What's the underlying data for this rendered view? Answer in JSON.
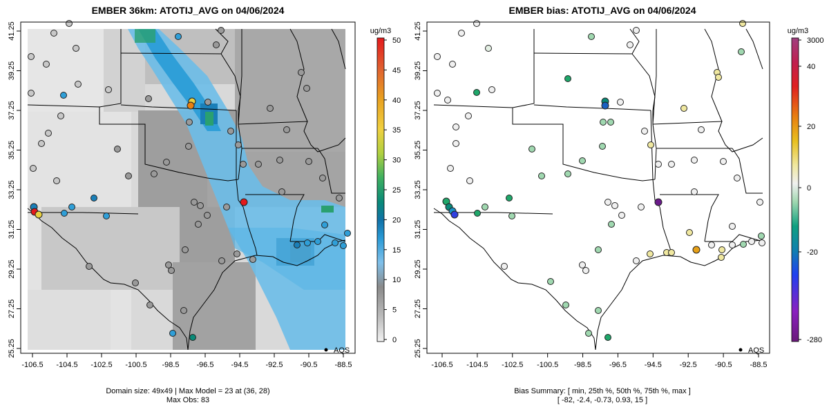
{
  "panels": [
    {
      "title": "EMBER 36km: ATOTIJ_AVG on 04/06/2024",
      "unit_label": "ug/m3",
      "x_ticks": [
        "-106.5",
        "-104.5",
        "-102.5",
        "-100.5",
        "-98.5",
        "-96.5",
        "-94.5",
        "-92.5",
        "-90.5",
        "-88.5"
      ],
      "y_ticks": [
        "25.25",
        "27.25",
        "29.25",
        "31.25",
        "33.25",
        "35.25",
        "37.25",
        "39.25",
        "41.25"
      ],
      "colorbar_ticks": [
        "0",
        "5",
        "10",
        "15",
        "20",
        "25",
        "30",
        "35",
        "40",
        "45",
        "50"
      ],
      "legend_label": "AQS",
      "caption_line1": "Domain size: 49x49 | Max Model = 23 at (36, 28)",
      "caption_line2": "Max Obs: 83"
    },
    {
      "title": "EMBER bias: ATOTIJ_AVG on 04/06/2024",
      "unit_label": "ug/m3",
      "x_ticks": [
        "-106.5",
        "-104.5",
        "-102.5",
        "-100.5",
        "-98.5",
        "-96.5",
        "-94.5",
        "-92.5",
        "-90.5",
        "-88.5"
      ],
      "y_ticks": [
        "25.25",
        "27.25",
        "29.25",
        "31.25",
        "33.25",
        "35.25",
        "37.25",
        "39.25",
        "41.25"
      ],
      "colorbar_ticks": [
        "3000",
        "40",
        "20",
        "0",
        "-20",
        "-280"
      ],
      "legend_label": "AQS",
      "caption_line1": "Bias Summary: [ min, 25th %, 50th %, 75th %, max ]",
      "caption_line2": "[ -82,   -2.4,   -0.73,   0.93,   15 ]"
    }
  ],
  "colors": {
    "model_scale": [
      "#e0e0e0",
      "#9a9a9a",
      "#56b4e9",
      "#1a93c9",
      "#0a7c8c",
      "#1fa76a",
      "#7fc850",
      "#e8d840",
      "#e6a018",
      "#e05a10",
      "#e41a1c"
    ],
    "bias_scale": [
      "#6a1a8a",
      "#3040e0",
      "#1a93c9",
      "#1fa76a",
      "#b8e0c0",
      "#f0f0f0",
      "#f0e8a0",
      "#e6b020",
      "#e06010",
      "#e41a1c",
      "#c0306a"
    ]
  }
}
